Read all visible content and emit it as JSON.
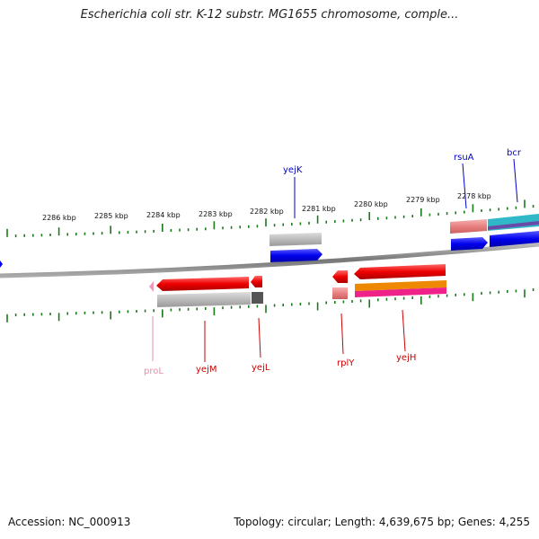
{
  "title": "Escherichia coli str. K-12 substr. MG1655 chromosome, comple...",
  "footer": {
    "accession": "Accession: NC_000913",
    "summary": "Topology: circular; Length: 4,639,675 bp; Genes: 4,255"
  },
  "kbp_labels": [
    "2286 kbp",
    "2285 kbp",
    "2284 kbp",
    "2283 kbp",
    "2282 kbp",
    "2281 kbp",
    "2280 kbp",
    "2279 kbp",
    "2278 kbp"
  ],
  "genes_forward": [
    {
      "name": "yejK",
      "color": "#0000cc"
    },
    {
      "name": "rsuA",
      "color": "#0000cc"
    },
    {
      "name": "bcr",
      "color": "#0000cc"
    }
  ],
  "genes_reverse": [
    {
      "name": "proL",
      "color": "#ee88aa"
    },
    {
      "name": "yejM",
      "color": "#cc0000"
    },
    {
      "name": "yejL",
      "color": "#cc0000"
    },
    {
      "name": "rplY",
      "color": "#cc0000"
    },
    {
      "name": "yejH",
      "color": "#cc0000"
    }
  ],
  "colors": {
    "tick": "#1a7a1a",
    "backbone": "#888888",
    "forward_cds": "#0000ee",
    "reverse_cds": "#ee0000",
    "gene_bar": "#bbbbbb"
  }
}
